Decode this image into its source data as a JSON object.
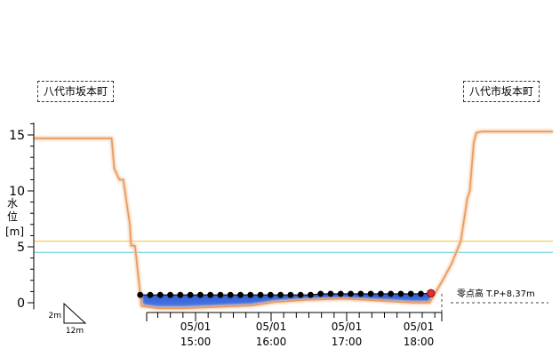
{
  "chart_data": {
    "type": "area",
    "station_left": "八代市坂本町",
    "station_right": "八代市坂本町",
    "ylabel": [
      "水",
      "位",
      "[m]"
    ],
    "yticks": [
      0,
      5,
      10,
      15
    ],
    "ylim": [
      -0.9,
      16.5
    ],
    "xticks": [
      {
        "date": "05/01",
        "time": "15:00"
      },
      {
        "date": "05/01",
        "time": "16:00"
      },
      {
        "date": "05/01",
        "time": "17:00"
      },
      {
        "date": "05/01",
        "time": "18:00"
      }
    ],
    "zero_point_label": "零点高 T.P+8.37m",
    "scale_label": {
      "vertical": "2m",
      "horizontal": "12m"
    },
    "reference_levels": [
      {
        "value": 5.5,
        "color": "#e8c23a"
      },
      {
        "value": 4.5,
        "color": "#5bc8d6"
      }
    ],
    "cross_section": {
      "color": "#e89a5e",
      "points": [
        [
          0,
          14.7
        ],
        [
          60,
          14.7
        ],
        [
          62,
          12.0
        ],
        [
          66,
          11.0
        ],
        [
          69,
          11.0
        ],
        [
          74,
          7.0
        ],
        [
          75,
          5.1
        ],
        [
          78,
          5.1
        ],
        [
          83,
          -0.3
        ],
        [
          96,
          -0.5
        ],
        [
          115,
          -0.5
        ],
        [
          168,
          -0.25
        ],
        [
          185,
          0.05
        ],
        [
          210,
          0.25
        ],
        [
          238,
          0.35
        ],
        [
          256,
          0.25
        ],
        [
          292,
          0.0
        ],
        [
          305,
          0.0
        ],
        [
          315,
          2.0
        ],
        [
          322,
          3.5
        ],
        [
          329,
          5.5
        ],
        [
          331,
          7.0
        ],
        [
          333,
          8.5
        ],
        [
          334,
          9.3
        ],
        [
          336,
          10.0
        ],
        [
          339,
          14.3
        ],
        [
          341,
          15.2
        ],
        [
          345,
          15.3
        ],
        [
          400,
          15.3
        ]
      ]
    },
    "water_level": {
      "color": "#3a6ad8",
      "values": [
        0.7,
        0.7,
        0.7,
        0.7,
        0.7,
        0.7,
        0.7,
        0.7,
        0.7,
        0.7,
        0.7,
        0.7,
        0.7,
        0.7,
        0.7,
        0.7,
        0.7,
        0.7,
        0.8,
        0.8,
        0.8,
        0.8,
        0.8,
        0.8,
        0.8,
        0.8,
        0.8,
        0.8,
        0.8,
        0.85
      ]
    }
  }
}
